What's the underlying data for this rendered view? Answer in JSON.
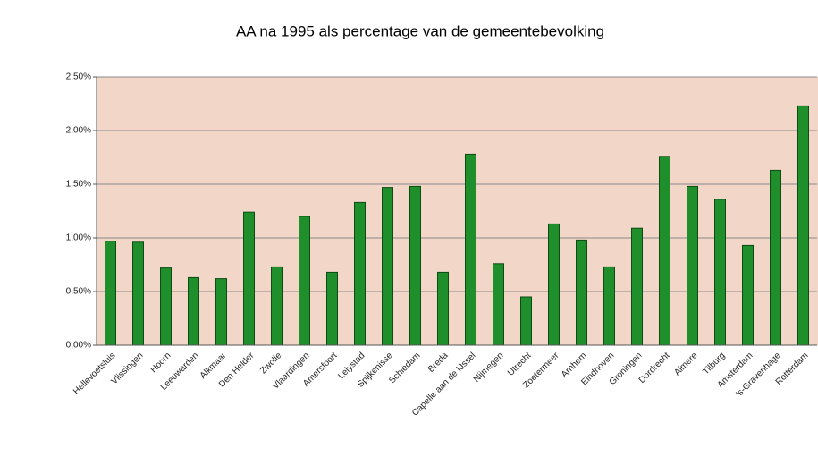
{
  "chart_data": {
    "type": "bar",
    "title": "AA na 1995 als percentage van de gemeentebevolking",
    "categories": [
      "Hellevoetsluis",
      "Vlissingen",
      "Hoorn",
      "Leeuwarden",
      "Alkmaar",
      "Den Helder",
      "Zwolle",
      "Vlaardingen",
      "Amersfoort",
      "Lelystad",
      "Spijkenisse",
      "Schiedam",
      "Breda",
      "Capelle aan de IJssel",
      "Nijmegen",
      "Utrecht",
      "Zoetermeer",
      "Arnhem",
      "Eindhoven",
      "Groningen",
      "Dordrecht",
      "Almere",
      "Tilburg",
      "Amsterdam",
      "'s-Gravenhage",
      "Rotterdam"
    ],
    "values": [
      0.97,
      0.96,
      0.72,
      0.63,
      0.62,
      1.24,
      0.73,
      1.2,
      0.68,
      1.33,
      1.47,
      1.48,
      0.68,
      1.78,
      0.76,
      0.45,
      1.13,
      0.98,
      0.73,
      1.09,
      1.76,
      1.48,
      1.36,
      0.93,
      1.63,
      2.23
    ],
    "color": "#1f8f2c",
    "ylim": [
      0,
      2.5
    ],
    "yticks": [
      {
        "value": 0,
        "label": "0,00%"
      },
      {
        "value": 0.5,
        "label": "0,50%"
      },
      {
        "value": 1,
        "label": "1,00%"
      },
      {
        "value": 1.5,
        "label": "1,50%"
      },
      {
        "value": 2,
        "label": "2,00%"
      },
      {
        "value": 2.5,
        "label": "2,50%"
      }
    ],
    "grid": true
  }
}
